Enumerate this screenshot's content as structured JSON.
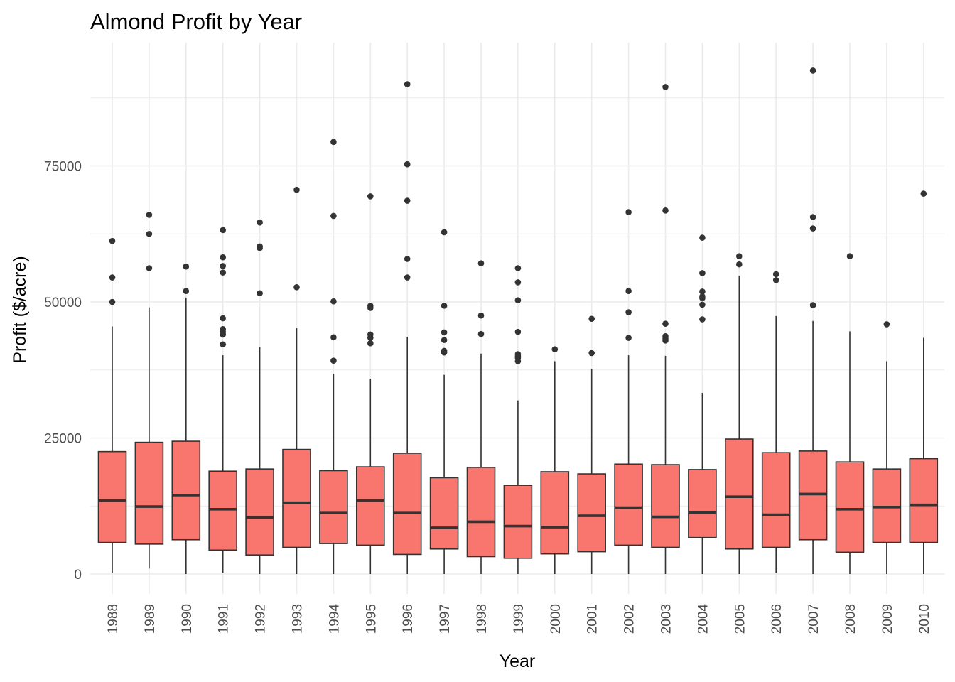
{
  "chart_data": {
    "type": "boxplot",
    "title": "Almond Profit by Year",
    "xlabel": "Year",
    "ylabel": "Profit ($/acre)",
    "ylim": [
      -4000,
      97000
    ],
    "yticks": [
      0,
      25000,
      50000,
      75000
    ],
    "grid": true,
    "legend": "none",
    "colors": {
      "box_fill": "#F8766D",
      "stroke": "#333333",
      "grid": "#EBEBEB"
    },
    "categories": [
      "1988",
      "1989",
      "1990",
      "1991",
      "1992",
      "1993",
      "1994",
      "1995",
      "1996",
      "1997",
      "1998",
      "1999",
      "2000",
      "2001",
      "2002",
      "2003",
      "2004",
      "2005",
      "2006",
      "2007",
      "2008",
      "2009",
      "2010"
    ],
    "boxes": [
      {
        "year": "1988",
        "lower": 200,
        "q1": 5800,
        "median": 13500,
        "q3": 22500,
        "upper": 45500,
        "outliers": [
          61200,
          54500,
          50000
        ]
      },
      {
        "year": "1989",
        "lower": 1000,
        "q1": 5500,
        "median": 12400,
        "q3": 24200,
        "upper": 49000,
        "outliers": [
          66000,
          62500,
          56200
        ]
      },
      {
        "year": "1990",
        "lower": 0,
        "q1": 6300,
        "median": 14500,
        "q3": 24400,
        "upper": 50800,
        "outliers": [
          56500,
          52000
        ]
      },
      {
        "year": "1991",
        "lower": 200,
        "q1": 4400,
        "median": 11900,
        "q3": 18900,
        "upper": 40200,
        "outliers": [
          63200,
          58200,
          56600,
          55400,
          47000,
          45000,
          44500,
          44000,
          42200
        ]
      },
      {
        "year": "1992",
        "lower": 0,
        "q1": 3500,
        "median": 10400,
        "q3": 19300,
        "upper": 41700,
        "outliers": [
          64600,
          60200,
          59900,
          51600
        ]
      },
      {
        "year": "1993",
        "lower": 0,
        "q1": 4900,
        "median": 13100,
        "q3": 22900,
        "upper": 45200,
        "outliers": [
          70600,
          52700
        ]
      },
      {
        "year": "1994",
        "lower": 0,
        "q1": 5600,
        "median": 11200,
        "q3": 19000,
        "upper": 36800,
        "outliers": [
          79400,
          65800,
          50100,
          43500,
          39200
        ]
      },
      {
        "year": "1995",
        "lower": 0,
        "q1": 5300,
        "median": 13500,
        "q3": 19700,
        "upper": 35900,
        "outliers": [
          69400,
          49300,
          48900,
          44000,
          43400,
          42400
        ]
      },
      {
        "year": "1996",
        "lower": 0,
        "q1": 3600,
        "median": 11200,
        "q3": 22200,
        "upper": 43600,
        "outliers": [
          90000,
          75300,
          68600,
          57900,
          54500
        ]
      },
      {
        "year": "1997",
        "lower": 0,
        "q1": 4600,
        "median": 8500,
        "q3": 17700,
        "upper": 36600,
        "outliers": [
          62800,
          49300,
          44400,
          43000,
          41000,
          40700
        ]
      },
      {
        "year": "1998",
        "lower": 0,
        "q1": 3200,
        "median": 9600,
        "q3": 19600,
        "upper": 40500,
        "outliers": [
          57100,
          47500,
          44100
        ]
      },
      {
        "year": "1999",
        "lower": 0,
        "q1": 2900,
        "median": 8800,
        "q3": 16300,
        "upper": 31900,
        "outliers": [
          56200,
          53600,
          50300,
          44500,
          40400,
          40000,
          39700,
          39100
        ]
      },
      {
        "year": "2000",
        "lower": 0,
        "q1": 3700,
        "median": 8600,
        "q3": 18800,
        "upper": 39100,
        "outliers": [
          41300
        ]
      },
      {
        "year": "2001",
        "lower": 0,
        "q1": 4100,
        "median": 10700,
        "q3": 18400,
        "upper": 37700,
        "outliers": [
          46900,
          40600
        ]
      },
      {
        "year": "2002",
        "lower": 0,
        "q1": 5300,
        "median": 12200,
        "q3": 20200,
        "upper": 40200,
        "outliers": [
          66500,
          52000,
          48100,
          43400
        ]
      },
      {
        "year": "2003",
        "lower": 0,
        "q1": 4900,
        "median": 10500,
        "q3": 20100,
        "upper": 40100,
        "outliers": [
          89500,
          66800,
          46000,
          43700,
          43300,
          42900
        ]
      },
      {
        "year": "2004",
        "lower": 0,
        "q1": 6700,
        "median": 11300,
        "q3": 19200,
        "upper": 33300,
        "outliers": [
          61800,
          55300,
          51900,
          51000,
          50700,
          49500,
          46800
        ]
      },
      {
        "year": "2005",
        "lower": 0,
        "q1": 4600,
        "median": 14200,
        "q3": 24800,
        "upper": 54800,
        "outliers": [
          58400,
          56900
        ]
      },
      {
        "year": "2006",
        "lower": 200,
        "q1": 4900,
        "median": 10900,
        "q3": 22300,
        "upper": 47400,
        "outliers": [
          55100,
          54000
        ]
      },
      {
        "year": "2007",
        "lower": 0,
        "q1": 6300,
        "median": 14700,
        "q3": 22600,
        "upper": 46500,
        "outliers": [
          92500,
          65600,
          63500,
          49400
        ]
      },
      {
        "year": "2008",
        "lower": 0,
        "q1": 4000,
        "median": 11900,
        "q3": 20600,
        "upper": 44600,
        "outliers": [
          58400
        ]
      },
      {
        "year": "2009",
        "lower": 0,
        "q1": 5800,
        "median": 12300,
        "q3": 19300,
        "upper": 39100,
        "outliers": [
          45900
        ]
      },
      {
        "year": "2010",
        "lower": 0,
        "q1": 5800,
        "median": 12700,
        "q3": 21200,
        "upper": 43400,
        "outliers": [
          69900
        ]
      }
    ]
  }
}
